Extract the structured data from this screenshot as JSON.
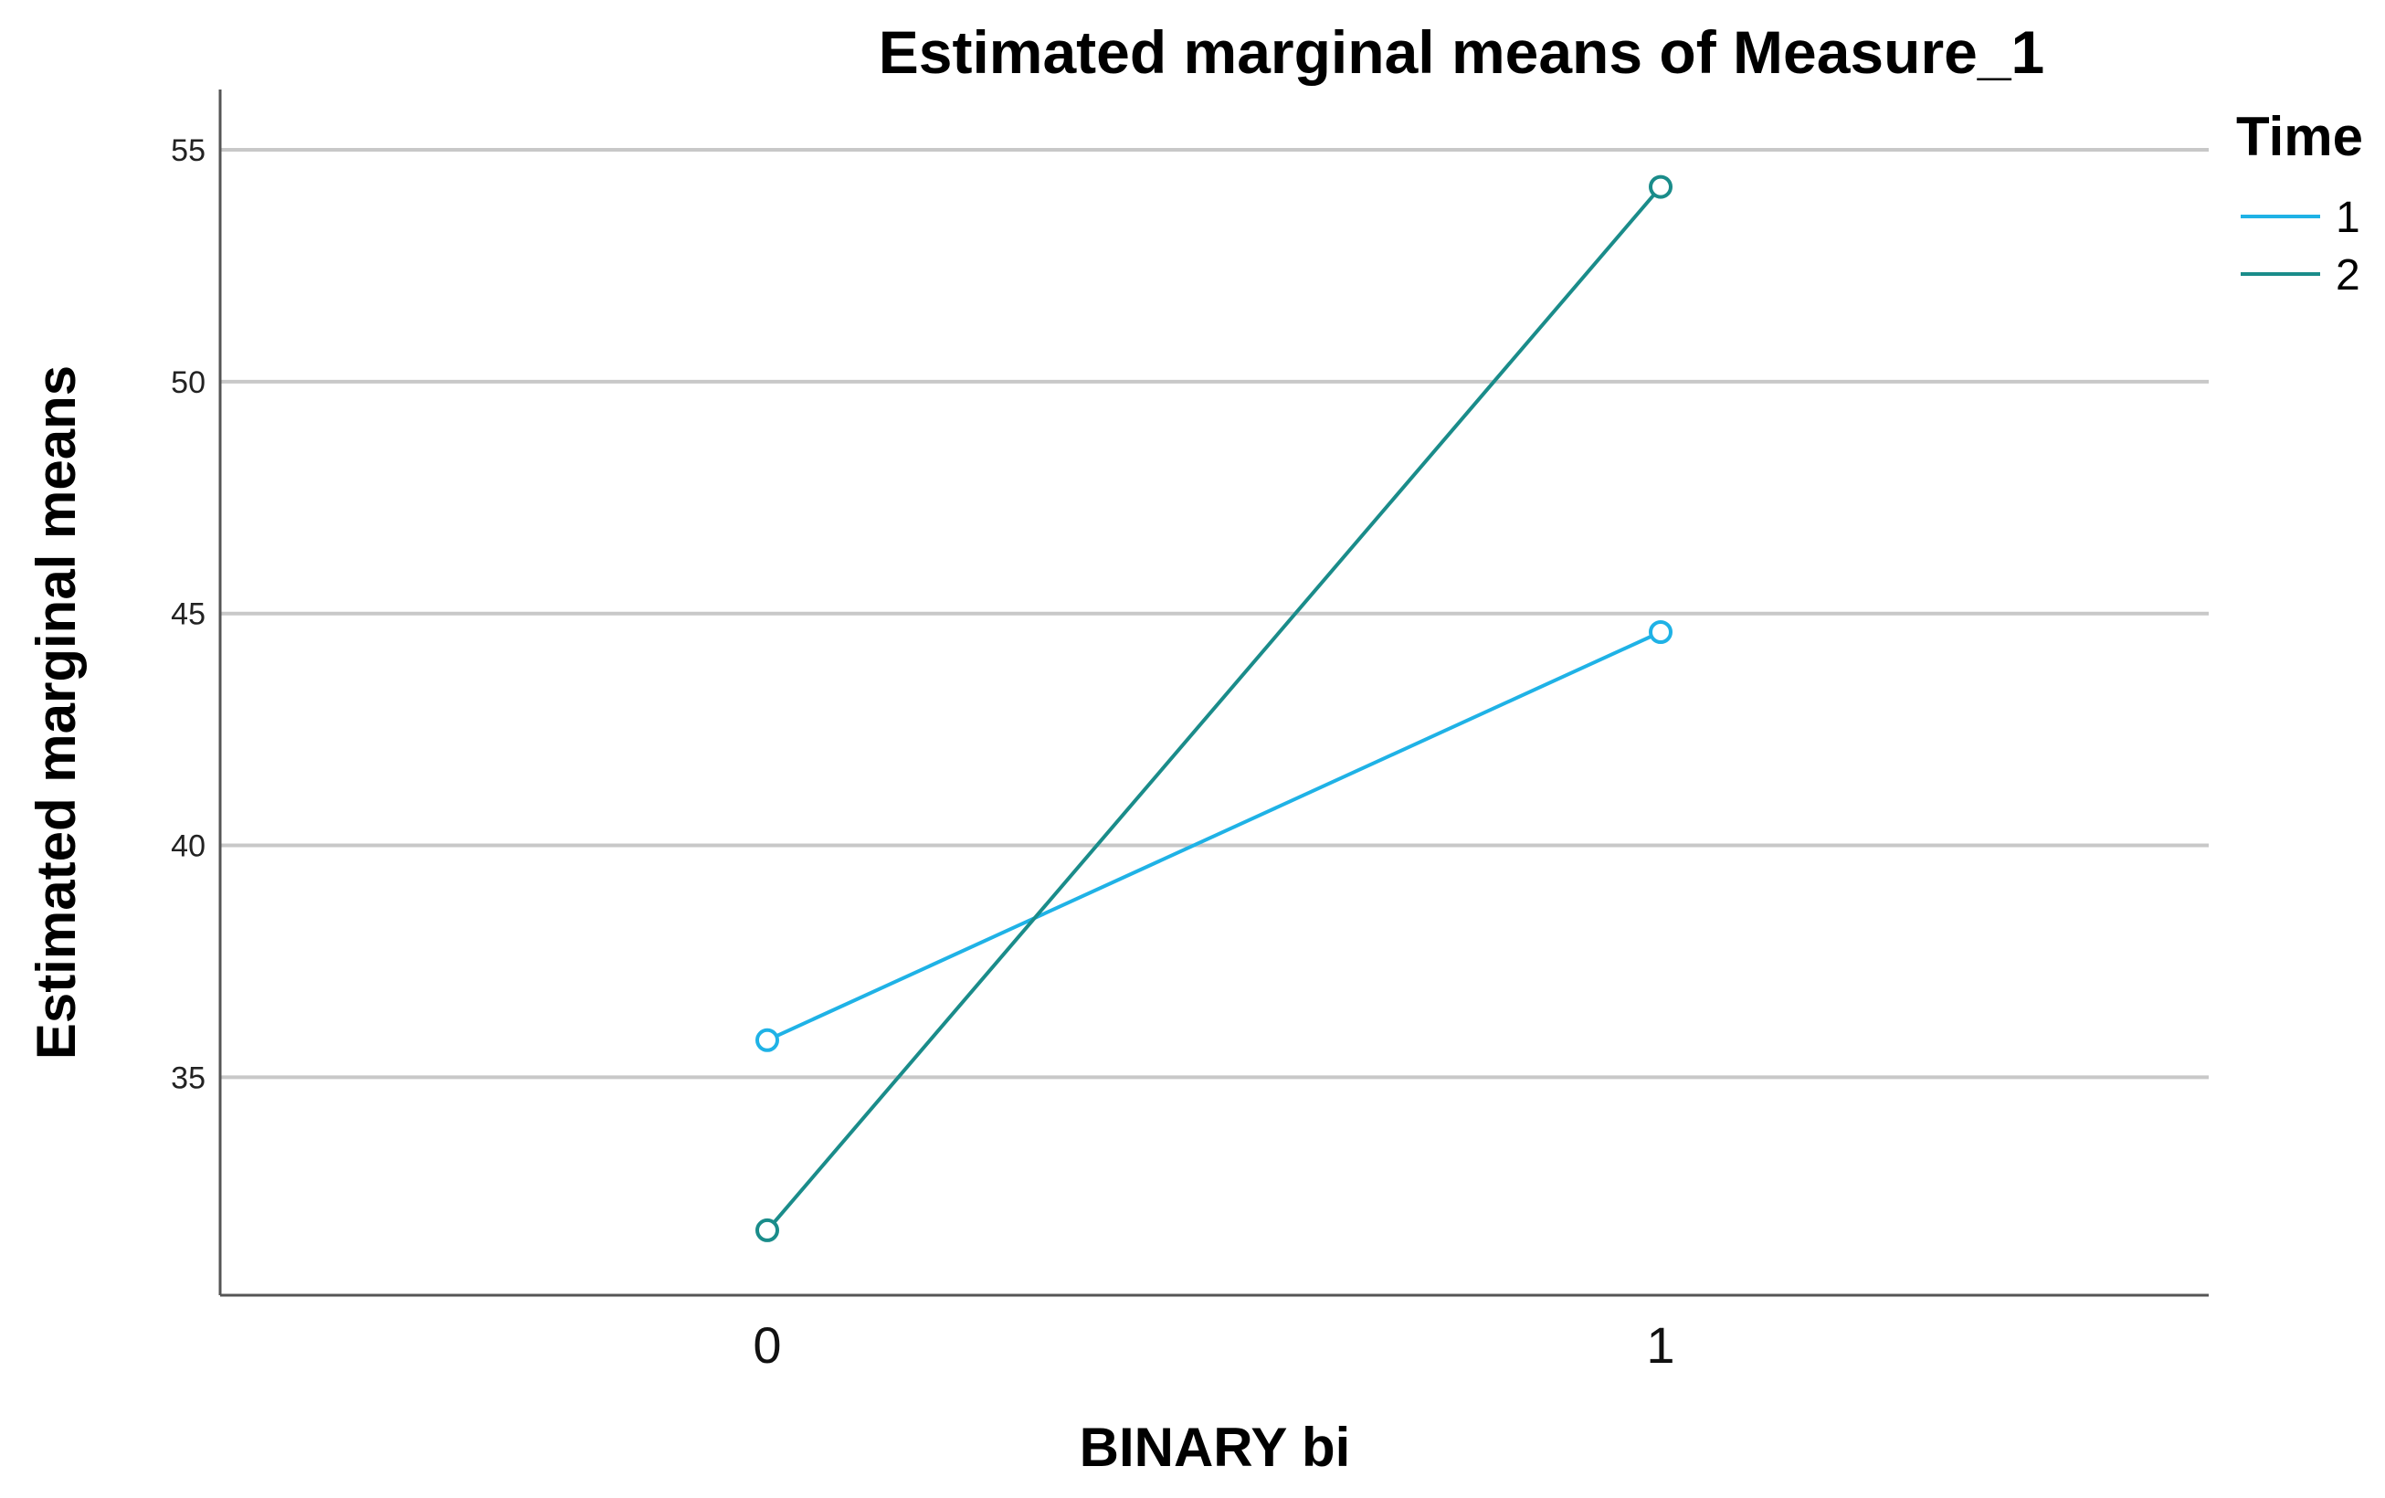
{
  "chart_data": {
    "type": "line",
    "title": "Estimated marginal means of Measure_1",
    "xlabel": "BINARY bi",
    "ylabel": "Estimated marginal means",
    "categories": [
      "0",
      "1"
    ],
    "ylim": [
      30.3,
      56.3
    ],
    "yticks": [
      35,
      40,
      45,
      50,
      55
    ],
    "grid": true,
    "legend": {
      "title": "Time",
      "position": "top-right"
    },
    "series": [
      {
        "name": "1",
        "color": "#1fb2e6",
        "values": [
          35.8,
          44.6
        ]
      },
      {
        "name": "2",
        "color": "#1a8c8a",
        "values": [
          31.7,
          54.2
        ]
      }
    ]
  }
}
